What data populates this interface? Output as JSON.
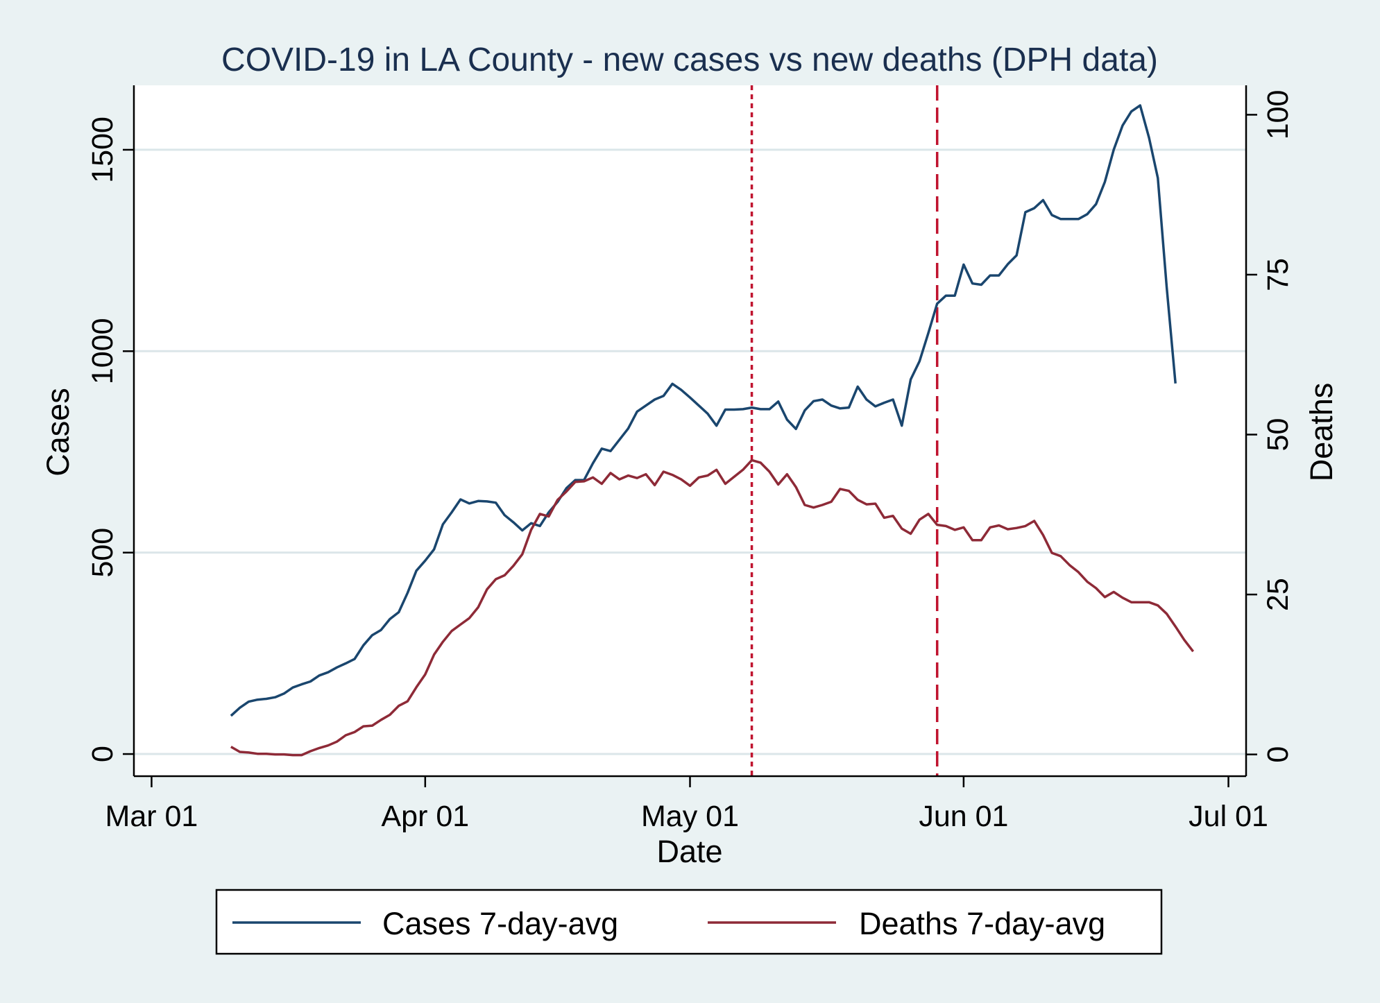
{
  "chart_data": {
    "type": "line",
    "title": "COVID-19 in LA County - new cases vs new deaths (DPH data)",
    "xlabel": "Date",
    "ylabel_left": "Cases",
    "ylabel_right": "Deaths",
    "x_ticks": [
      "Mar 01",
      "Apr 01",
      "May 01",
      "Jun 01",
      "Jul 01"
    ],
    "xlim": [
      "2020-02-28",
      "2020-07-03"
    ],
    "y_left_ticks": [
      0,
      500,
      1000,
      1500
    ],
    "y_left_lim": [
      -55,
      1660
    ],
    "y_right_ticks": [
      0,
      25,
      50,
      75,
      100
    ],
    "y_right_lim": [
      -3.4,
      104.6
    ],
    "grid": "horizontal",
    "legend_position": "bottom",
    "reference_lines": [
      {
        "date": "2020-05-08",
        "style": "dotted",
        "color": "#c0132f"
      },
      {
        "date": "2020-05-29",
        "style": "dashed",
        "color": "#c0132f"
      }
    ],
    "start_date": "2020-03-10",
    "series": [
      {
        "name": "Cases 7-day-avg",
        "axis": "left",
        "color": "#1a466e",
        "values": [
          95,
          115,
          130,
          135,
          137,
          141,
          150,
          165,
          173,
          180,
          195,
          203,
          215,
          225,
          236,
          270,
          295,
          308,
          335,
          352,
          400,
          455,
          480,
          508,
          570,
          600,
          632,
          622,
          628,
          627,
          624,
          593,
          575,
          555,
          573,
          566,
          600,
          626,
          660,
          680,
          680,
          722,
          758,
          752,
          780,
          808,
          850,
          865,
          880,
          889,
          919,
          904,
          885,
          865,
          845,
          815,
          855,
          855,
          856,
          860,
          856,
          856,
          875,
          830,
          807,
          853,
          876,
          880,
          865,
          858,
          860,
          912,
          880,
          863,
          872,
          880,
          815,
          930,
          975,
          1045,
          1118,
          1138,
          1138,
          1215,
          1168,
          1165,
          1188,
          1188,
          1216,
          1238,
          1345,
          1355,
          1375,
          1338,
          1328,
          1328,
          1328,
          1340,
          1365,
          1420,
          1500,
          1560,
          1595,
          1610,
          1530,
          1430,
          1160,
          920
        ]
      },
      {
        "name": "Deaths 7-day-avg",
        "axis": "right",
        "color": "#8e2a37",
        "values": [
          1.2,
          0.4,
          0.3,
          0.1,
          0.1,
          0.0,
          0.0,
          -0.1,
          -0.1,
          0.5,
          1.0,
          1.4,
          2.0,
          3.0,
          3.5,
          4.4,
          4.5,
          5.4,
          6.2,
          7.6,
          8.3,
          10.5,
          12.5,
          15.6,
          17.6,
          19.3,
          20.3,
          21.3,
          23.0,
          25.8,
          27.4,
          28.0,
          29.5,
          31.3,
          35.1,
          37.6,
          37.2,
          39.8,
          41.1,
          42.6,
          42.7,
          43.3,
          42.3,
          44.0,
          43.0,
          43.6,
          43.2,
          43.8,
          42.1,
          44.2,
          43.7,
          43.0,
          42.0,
          43.3,
          43.6,
          44.5,
          42.3,
          43.4,
          44.5,
          46.0,
          45.6,
          44.2,
          42.2,
          43.8,
          41.8,
          39.0,
          38.6,
          39.0,
          39.5,
          41.5,
          41.2,
          39.8,
          39.1,
          39.2,
          37.0,
          37.3,
          35.3,
          34.5,
          36.7,
          37.6,
          35.9,
          35.7,
          35.1,
          35.5,
          33.5,
          33.5,
          35.5,
          35.8,
          35.2,
          35.4,
          35.7,
          36.5,
          34.3,
          31.5,
          31.0,
          29.6,
          28.5,
          27.0,
          26.0,
          24.6,
          25.4,
          24.5,
          23.8,
          23.8,
          23.8,
          23.3,
          22.0,
          20.0,
          17.9,
          16.1
        ]
      }
    ]
  },
  "legend": {
    "cases_label": "Cases 7-day-avg",
    "deaths_label": "Deaths 7-day-avg"
  }
}
